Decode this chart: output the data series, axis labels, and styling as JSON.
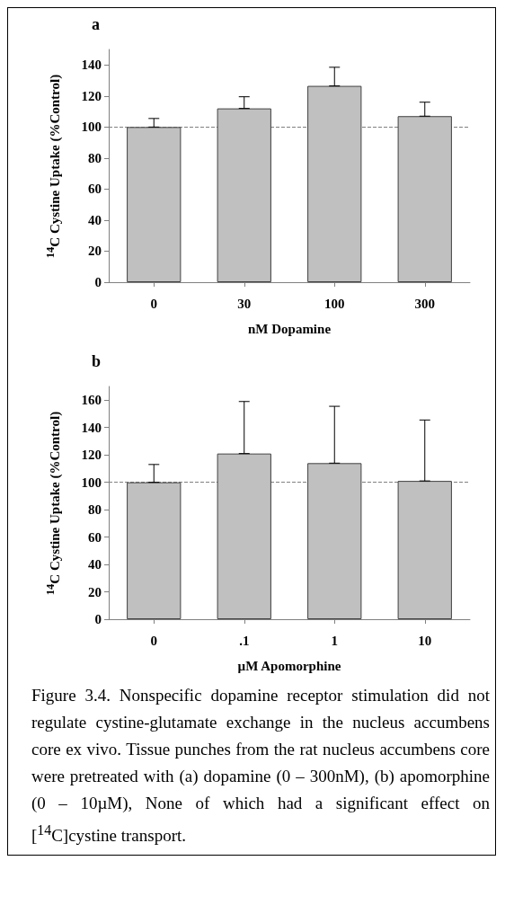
{
  "chart_data": [
    {
      "type": "bar",
      "title": "a",
      "xlabel": "nM Dopamine",
      "ylabel": "$^{14}$C Cystine Uptake (%Control)",
      "categories": [
        "0",
        "30",
        "100",
        "300"
      ],
      "values": [
        100,
        112,
        126.5,
        107
      ],
      "color": "#c0c0c0",
      "errors": [
        [
          100,
          105.5
        ],
        [
          112,
          119.5
        ],
        [
          126.5,
          138.5
        ],
        [
          107,
          116
        ]
      ],
      "ylim": [
        0,
        150
      ],
      "yticks": [
        0,
        20,
        40,
        60,
        80,
        100,
        120,
        140
      ],
      "ref_lines": [
        {
          "axis": "y",
          "value": 100,
          "label": null,
          "color": "#808080",
          "line_style": "dashed"
        }
      ]
    },
    {
      "type": "bar",
      "title": "b",
      "xlabel": "µM Apomorphine",
      "ylabel": "$^{14}$C Cystine Uptake (%Control)",
      "categories": [
        "0",
        ".1",
        "1",
        "10"
      ],
      "values": [
        100,
        121,
        114,
        101
      ],
      "color": "#c0c0c0",
      "errors": [
        [
          100,
          113
        ],
        [
          121,
          159
        ],
        [
          114,
          155.5
        ],
        [
          101,
          145.5
        ]
      ],
      "ylim": [
        0,
        170
      ],
      "yticks": [
        0,
        20,
        40,
        60,
        80,
        100,
        120,
        140,
        160
      ],
      "ref_lines": [
        {
          "axis": "y",
          "value": 100,
          "label": null,
          "color": "#808080",
          "line_style": "dashed"
        }
      ],
      "annotations": [
        "Figure 3.4. Nonspecific dopamine receptor stimulation did not regulate cystine-glutamate exchange in the nucleus accumbens core ex vivo. Tissue punches from the rat nucleus accumbens core were pretreated with (a) dopamine (0 – 300nM), (b) apomorphine (0 – 10µM), None of which had a significant effect on [$^{14}$C]cystine transport."
      ]
    }
  ]
}
